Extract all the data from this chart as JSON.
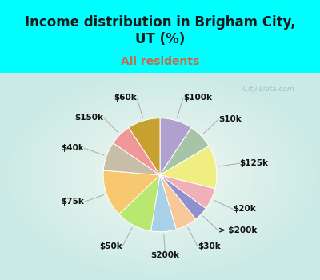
{
  "title": "Income distribution in Brigham City,\nUT (%)",
  "subtitle": "All residents",
  "slices": [
    {
      "label": "$100k",
      "value": 9,
      "color": "#b0a0d0"
    },
    {
      "label": "$10k",
      "value": 7,
      "color": "#a8c4a8"
    },
    {
      "label": "$125k",
      "value": 12,
      "color": "#f0ee80"
    },
    {
      "label": "$20k",
      "value": 6,
      "color": "#f0b0b8"
    },
    {
      "label": "> $200k",
      "value": 4,
      "color": "#9090cc"
    },
    {
      "label": "$30k",
      "value": 6,
      "color": "#f8c898"
    },
    {
      "label": "$200k",
      "value": 7,
      "color": "#a8d0e8"
    },
    {
      "label": "$50k",
      "value": 10,
      "color": "#b8e870"
    },
    {
      "label": "$75k",
      "value": 13,
      "color": "#f8c870"
    },
    {
      "label": "$40k",
      "value": 8,
      "color": "#c8bea8"
    },
    {
      "label": "$150k",
      "value": 6,
      "color": "#f09898"
    },
    {
      "label": "$60k",
      "value": 9,
      "color": "#c8a030"
    }
  ],
  "watermark": "  City-Data.com",
  "label_fontsize": 7.5,
  "title_fontsize": 12,
  "subtitle_fontsize": 10,
  "title_color": "#1a1a1a",
  "subtitle_color": "#cc6644"
}
